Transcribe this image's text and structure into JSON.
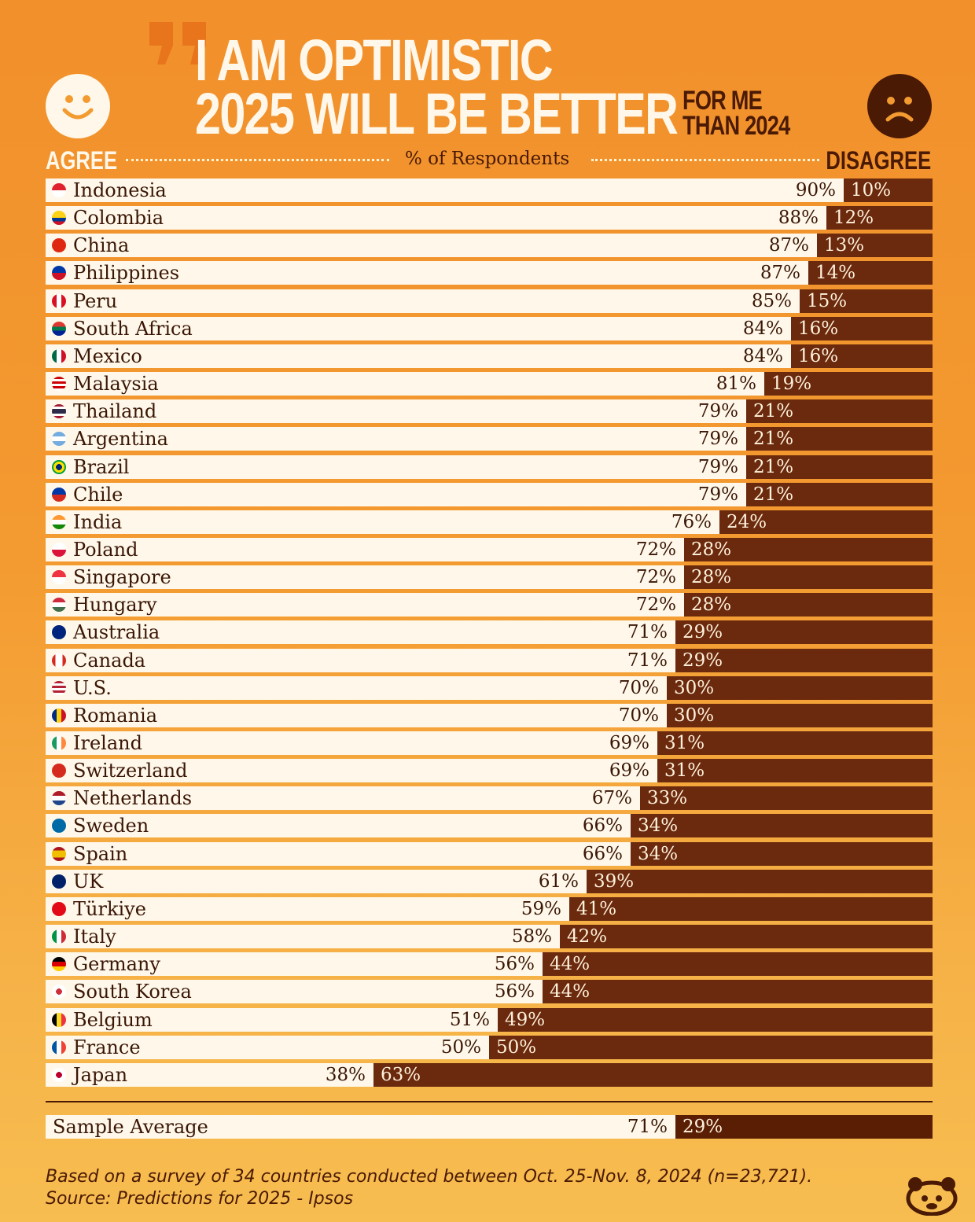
{
  "header": {
    "title_line1": "I AM OPTIMISTIC",
    "title_line2": "2025 WILL BE BETTER",
    "title_small_line1": "FOR ME",
    "title_small_line2": "THAN 2024",
    "agree_label": "AGREE",
    "disagree_label": "DISAGREE",
    "respondents_label": "% of Respondents"
  },
  "icons": {
    "quote": "quote-mark-icon",
    "agree": "smiley-face-icon",
    "disagree": "sad-face-icon",
    "logo": "publisher-logo-icon"
  },
  "colors": {
    "agree_bar": "#fff8ea",
    "disagree_bar": "#6b2a0d",
    "background": "#f39a30",
    "text_dark": "#3a1605"
  },
  "chart_data": {
    "type": "bar",
    "orientation": "horizontal-stacked-100",
    "xlabel": "% of Respondents",
    "xlim": [
      0,
      100
    ],
    "legend": [
      "AGREE",
      "DISAGREE"
    ],
    "rows": [
      {
        "country": "Indonesia",
        "agree": 90,
        "disagree": 10,
        "agree_text": "90%",
        "disagree_text": "10%",
        "flag": "indonesia-flag-icon"
      },
      {
        "country": "Colombia",
        "agree": 88,
        "disagree": 12,
        "agree_text": "88%",
        "disagree_text": "12%",
        "flag": "colombia-flag-icon"
      },
      {
        "country": "China",
        "agree": 87,
        "disagree": 13,
        "agree_text": "87%",
        "disagree_text": "13%",
        "flag": "china-flag-icon"
      },
      {
        "country": "Philippines",
        "agree": 87,
        "disagree": 14,
        "agree_text": "87%",
        "disagree_text": "14%",
        "flag": "philippines-flag-icon"
      },
      {
        "country": "Peru",
        "agree": 85,
        "disagree": 15,
        "agree_text": "85%",
        "disagree_text": "15%",
        "flag": "peru-flag-icon"
      },
      {
        "country": "South Africa",
        "agree": 84,
        "disagree": 16,
        "agree_text": "84%",
        "disagree_text": "16%",
        "flag": "south-africa-flag-icon"
      },
      {
        "country": "Mexico",
        "agree": 84,
        "disagree": 16,
        "agree_text": "84%",
        "disagree_text": "16%",
        "flag": "mexico-flag-icon"
      },
      {
        "country": "Malaysia",
        "agree": 81,
        "disagree": 19,
        "agree_text": "81%",
        "disagree_text": "19%",
        "flag": "malaysia-flag-icon"
      },
      {
        "country": "Thailand",
        "agree": 79,
        "disagree": 21,
        "agree_text": "79%",
        "disagree_text": "21%",
        "flag": "thailand-flag-icon"
      },
      {
        "country": "Argentina",
        "agree": 79,
        "disagree": 21,
        "agree_text": "79%",
        "disagree_text": "21%",
        "flag": "argentina-flag-icon"
      },
      {
        "country": "Brazil",
        "agree": 79,
        "disagree": 21,
        "agree_text": "79%",
        "disagree_text": "21%",
        "flag": "brazil-flag-icon"
      },
      {
        "country": "Chile",
        "agree": 79,
        "disagree": 21,
        "agree_text": "79%",
        "disagree_text": "21%",
        "flag": "chile-flag-icon"
      },
      {
        "country": "India",
        "agree": 76,
        "disagree": 24,
        "agree_text": "76%",
        "disagree_text": "24%",
        "flag": "india-flag-icon"
      },
      {
        "country": "Poland",
        "agree": 72,
        "disagree": 28,
        "agree_text": "72%",
        "disagree_text": "28%",
        "flag": "poland-flag-icon"
      },
      {
        "country": "Singapore",
        "agree": 72,
        "disagree": 28,
        "agree_text": "72%",
        "disagree_text": "28%",
        "flag": "singapore-flag-icon"
      },
      {
        "country": "Hungary",
        "agree": 72,
        "disagree": 28,
        "agree_text": "72%",
        "disagree_text": "28%",
        "flag": "hungary-flag-icon"
      },
      {
        "country": "Australia",
        "agree": 71,
        "disagree": 29,
        "agree_text": "71%",
        "disagree_text": "29%",
        "flag": "australia-flag-icon"
      },
      {
        "country": "Canada",
        "agree": 71,
        "disagree": 29,
        "agree_text": "71%",
        "disagree_text": "29%",
        "flag": "canada-flag-icon"
      },
      {
        "country": "U.S.",
        "agree": 70,
        "disagree": 30,
        "agree_text": "70%",
        "disagree_text": "30%",
        "flag": "us-flag-icon"
      },
      {
        "country": "Romania",
        "agree": 70,
        "disagree": 30,
        "agree_text": "70%",
        "disagree_text": "30%",
        "flag": "romania-flag-icon"
      },
      {
        "country": "Ireland",
        "agree": 69,
        "disagree": 31,
        "agree_text": "69%",
        "disagree_text": "31%",
        "flag": "ireland-flag-icon"
      },
      {
        "country": "Switzerland",
        "agree": 69,
        "disagree": 31,
        "agree_text": "69%",
        "disagree_text": "31%",
        "flag": "switzerland-flag-icon"
      },
      {
        "country": "Netherlands",
        "agree": 67,
        "disagree": 33,
        "agree_text": "67%",
        "disagree_text": "33%",
        "flag": "netherlands-flag-icon"
      },
      {
        "country": "Sweden",
        "agree": 66,
        "disagree": 34,
        "agree_text": "66%",
        "disagree_text": "34%",
        "flag": "sweden-flag-icon"
      },
      {
        "country": "Spain",
        "agree": 66,
        "disagree": 34,
        "agree_text": "66%",
        "disagree_text": "34%",
        "flag": "spain-flag-icon"
      },
      {
        "country": "UK",
        "agree": 61,
        "disagree": 39,
        "agree_text": "61%",
        "disagree_text": "39%",
        "flag": "uk-flag-icon"
      },
      {
        "country": "Türkiye",
        "agree": 59,
        "disagree": 41,
        "agree_text": "59%",
        "disagree_text": "41%",
        "flag": "turkiye-flag-icon"
      },
      {
        "country": "Italy",
        "agree": 58,
        "disagree": 42,
        "agree_text": "58%",
        "disagree_text": "42%",
        "flag": "italy-flag-icon"
      },
      {
        "country": "Germany",
        "agree": 56,
        "disagree": 44,
        "agree_text": "56%",
        "disagree_text": "44%",
        "flag": "germany-flag-icon"
      },
      {
        "country": "South Korea",
        "agree": 56,
        "disagree": 44,
        "agree_text": "56%",
        "disagree_text": "44%",
        "flag": "south-korea-flag-icon"
      },
      {
        "country": "Belgium",
        "agree": 51,
        "disagree": 49,
        "agree_text": "51%",
        "disagree_text": "49%",
        "flag": "belgium-flag-icon"
      },
      {
        "country": "France",
        "agree": 50,
        "disagree": 50,
        "agree_text": "50%",
        "disagree_text": "50%",
        "flag": "france-flag-icon"
      },
      {
        "country": "Japan",
        "agree": 38,
        "disagree": 63,
        "agree_text": "38%",
        "disagree_text": "63%",
        "flag": "japan-flag-icon"
      }
    ],
    "average": {
      "label": "Sample Average",
      "agree": 71,
      "disagree": 29,
      "agree_text": "71%",
      "disagree_text": "29%"
    }
  },
  "footer": {
    "note": "Based on a survey of 34 countries conducted between Oct. 25-Nov. 8, 2024 (n=23,721).",
    "source": "Source: Predictions for 2025 - Ipsos"
  }
}
